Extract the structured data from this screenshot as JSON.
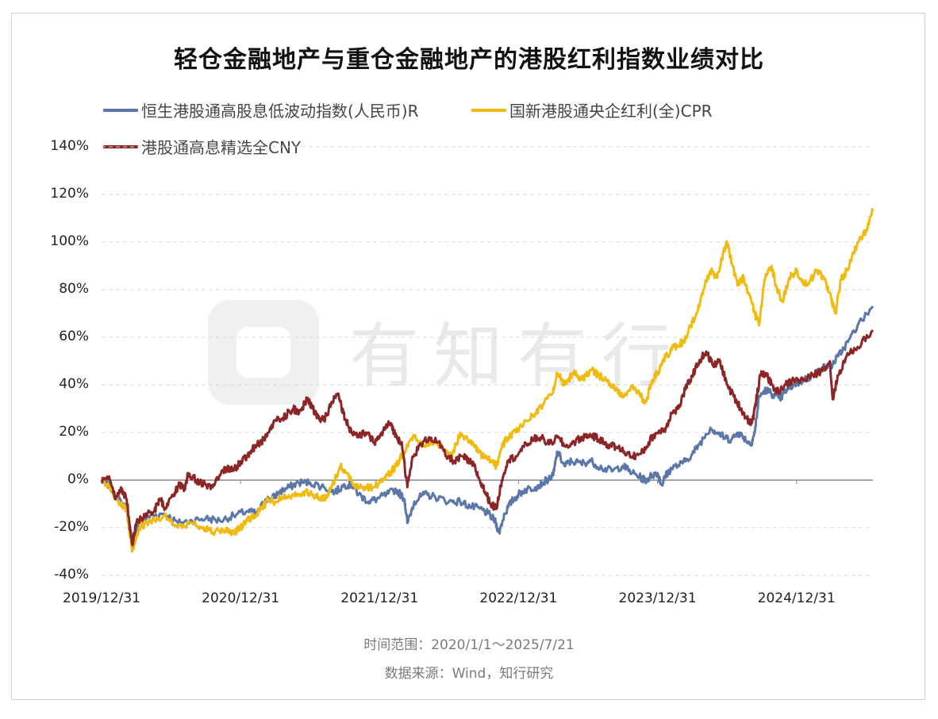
{
  "title": "轻仓金融地产与重仓金融地产的港股红利指数业绩对比",
  "watermark_text": "有知有行",
  "notes": {
    "time_range": "时间范围：2020/1/1～2025/7/21",
    "source": "数据来源：Wind，知行研究"
  },
  "colors": {
    "series1": "#5b76a8",
    "series2": "#f0bb10",
    "series3": "#8b2526",
    "grid": "#d8d8d8",
    "zero_line": "#8a8a8a"
  },
  "chart_data": {
    "type": "line",
    "title": "轻仓金融地产与重仓金融地产的港股红利指数业绩对比",
    "xlabel": "",
    "ylabel": "",
    "ylim": [
      -40,
      140
    ],
    "yticks": [
      "140%",
      "120%",
      "100%",
      "80%",
      "60%",
      "40%",
      "20%",
      "0%",
      "-20%",
      "-40%"
    ],
    "ytick_values": [
      140,
      120,
      100,
      80,
      60,
      40,
      20,
      0,
      -20,
      -40
    ],
    "xticks": [
      "2019/12/31",
      "2020/12/31",
      "2021/12/31",
      "2022/12/31",
      "2023/12/31",
      "2024/12/31"
    ],
    "xtick_values": [
      2020.0,
      2021.0,
      2022.0,
      2023.0,
      2024.0,
      2025.0
    ],
    "xlim": [
      2020.0,
      2025.55
    ],
    "grid": "horizontal dashed",
    "legend_position": "top",
    "series": [
      {
        "name": "恒生港股通高股息低波动指数(人民币)R",
        "color": "#5b76a8",
        "points": [
          [
            2020.0,
            0
          ],
          [
            2020.05,
            -2
          ],
          [
            2020.12,
            -8
          ],
          [
            2020.18,
            -12
          ],
          [
            2020.22,
            -26
          ],
          [
            2020.27,
            -18
          ],
          [
            2020.35,
            -15
          ],
          [
            2020.45,
            -14
          ],
          [
            2020.55,
            -18
          ],
          [
            2020.65,
            -17
          ],
          [
            2020.75,
            -16
          ],
          [
            2020.85,
            -17
          ],
          [
            2020.95,
            -15
          ],
          [
            2021.05,
            -13
          ],
          [
            2021.12,
            -14
          ],
          [
            2021.18,
            -8
          ],
          [
            2021.22,
            -8
          ],
          [
            2021.28,
            -5
          ],
          [
            2021.35,
            -3
          ],
          [
            2021.42,
            -1
          ],
          [
            2021.5,
            -1
          ],
          [
            2021.6,
            -3
          ],
          [
            2021.68,
            -5
          ],
          [
            2021.75,
            -2
          ],
          [
            2021.8,
            -2
          ],
          [
            2021.85,
            -6
          ],
          [
            2021.92,
            -9
          ],
          [
            2021.98,
            -8
          ],
          [
            2022.05,
            -6
          ],
          [
            2022.12,
            -4
          ],
          [
            2022.18,
            -8
          ],
          [
            2022.2,
            -18
          ],
          [
            2022.25,
            -9
          ],
          [
            2022.32,
            -6
          ],
          [
            2022.4,
            -7
          ],
          [
            2022.5,
            -9
          ],
          [
            2022.58,
            -9
          ],
          [
            2022.65,
            -11
          ],
          [
            2022.72,
            -12
          ],
          [
            2022.78,
            -14
          ],
          [
            2022.83,
            -17
          ],
          [
            2022.86,
            -22
          ],
          [
            2022.9,
            -14
          ],
          [
            2022.95,
            -9
          ],
          [
            2023.0,
            -6
          ],
          [
            2023.05,
            -4
          ],
          [
            2023.12,
            -3
          ],
          [
            2023.18,
            -1
          ],
          [
            2023.25,
            2
          ],
          [
            2023.28,
            12
          ],
          [
            2023.33,
            6
          ],
          [
            2023.38,
            8
          ],
          [
            2023.45,
            7
          ],
          [
            2023.52,
            8
          ],
          [
            2023.6,
            5
          ],
          [
            2023.68,
            4
          ],
          [
            2023.75,
            6
          ],
          [
            2023.82,
            3
          ],
          [
            2023.88,
            1
          ],
          [
            2023.92,
            0
          ],
          [
            2023.96,
            2
          ],
          [
            2024.0,
            3
          ],
          [
            2024.03,
            -2
          ],
          [
            2024.06,
            2
          ],
          [
            2024.1,
            5
          ],
          [
            2024.18,
            7
          ],
          [
            2024.25,
            11
          ],
          [
            2024.3,
            15
          ],
          [
            2024.38,
            22
          ],
          [
            2024.43,
            20
          ],
          [
            2024.48,
            18
          ],
          [
            2024.53,
            17
          ],
          [
            2024.58,
            20
          ],
          [
            2024.62,
            18
          ],
          [
            2024.67,
            15
          ],
          [
            2024.7,
            20
          ],
          [
            2024.73,
            35
          ],
          [
            2024.78,
            38
          ],
          [
            2024.83,
            36
          ],
          [
            2024.88,
            34
          ],
          [
            2024.93,
            38
          ],
          [
            2024.98,
            40
          ],
          [
            2025.05,
            42
          ],
          [
            2025.12,
            44
          ],
          [
            2025.18,
            47
          ],
          [
            2025.25,
            48
          ],
          [
            2025.3,
            52
          ],
          [
            2025.37,
            58
          ],
          [
            2025.44,
            65
          ],
          [
            2025.55,
            73
          ]
        ]
      },
      {
        "name": "国新港股通央企红利(全)CPR",
        "color": "#f0bb10",
        "points": [
          [
            2020.0,
            0
          ],
          [
            2020.05,
            -2
          ],
          [
            2020.12,
            -9
          ],
          [
            2020.18,
            -13
          ],
          [
            2020.22,
            -30
          ],
          [
            2020.27,
            -20
          ],
          [
            2020.35,
            -17
          ],
          [
            2020.45,
            -15
          ],
          [
            2020.55,
            -20
          ],
          [
            2020.65,
            -18
          ],
          [
            2020.75,
            -20
          ],
          [
            2020.8,
            -22
          ],
          [
            2020.88,
            -21
          ],
          [
            2020.95,
            -22
          ],
          [
            2021.0,
            -20
          ],
          [
            2021.05,
            -17
          ],
          [
            2021.1,
            -15
          ],
          [
            2021.15,
            -12
          ],
          [
            2021.2,
            -8
          ],
          [
            2021.25,
            -9
          ],
          [
            2021.3,
            -7
          ],
          [
            2021.38,
            -6
          ],
          [
            2021.45,
            -5
          ],
          [
            2021.52,
            -6
          ],
          [
            2021.58,
            -8
          ],
          [
            2021.62,
            -7
          ],
          [
            2021.66,
            -2
          ],
          [
            2021.72,
            6
          ],
          [
            2021.76,
            3
          ],
          [
            2021.82,
            -2
          ],
          [
            2021.88,
            -3
          ],
          [
            2021.95,
            -3
          ],
          [
            2022.0,
            -1
          ],
          [
            2022.06,
            2
          ],
          [
            2022.12,
            6
          ],
          [
            2022.16,
            10
          ],
          [
            2022.2,
            15
          ],
          [
            2022.25,
            18
          ],
          [
            2022.32,
            14
          ],
          [
            2022.4,
            17
          ],
          [
            2022.47,
            12
          ],
          [
            2022.52,
            10
          ],
          [
            2022.58,
            20
          ],
          [
            2022.62,
            18
          ],
          [
            2022.68,
            14
          ],
          [
            2022.74,
            10
          ],
          [
            2022.8,
            8
          ],
          [
            2022.84,
            6
          ],
          [
            2022.88,
            14
          ],
          [
            2022.92,
            18
          ],
          [
            2022.98,
            20
          ],
          [
            2023.05,
            25
          ],
          [
            2023.12,
            28
          ],
          [
            2023.18,
            32
          ],
          [
            2023.24,
            36
          ],
          [
            2023.28,
            45
          ],
          [
            2023.33,
            40
          ],
          [
            2023.4,
            46
          ],
          [
            2023.45,
            42
          ],
          [
            2023.52,
            46
          ],
          [
            2023.58,
            44
          ],
          [
            2023.64,
            42
          ],
          [
            2023.7,
            38
          ],
          [
            2023.76,
            35
          ],
          [
            2023.82,
            40
          ],
          [
            2023.88,
            35
          ],
          [
            2023.92,
            33
          ],
          [
            2023.96,
            42
          ],
          [
            2024.0,
            45
          ],
          [
            2024.06,
            52
          ],
          [
            2024.12,
            56
          ],
          [
            2024.18,
            58
          ],
          [
            2024.22,
            62
          ],
          [
            2024.28,
            70
          ],
          [
            2024.33,
            80
          ],
          [
            2024.38,
            88
          ],
          [
            2024.43,
            85
          ],
          [
            2024.47,
            95
          ],
          [
            2024.5,
            100
          ],
          [
            2024.54,
            90
          ],
          [
            2024.58,
            82
          ],
          [
            2024.62,
            85
          ],
          [
            2024.66,
            78
          ],
          [
            2024.7,
            70
          ],
          [
            2024.73,
            65
          ],
          [
            2024.77,
            84
          ],
          [
            2024.82,
            90
          ],
          [
            2024.86,
            80
          ],
          [
            2024.9,
            75
          ],
          [
            2024.95,
            85
          ],
          [
            2025.0,
            88
          ],
          [
            2025.05,
            82
          ],
          [
            2025.1,
            84
          ],
          [
            2025.15,
            88
          ],
          [
            2025.2,
            85
          ],
          [
            2025.25,
            76
          ],
          [
            2025.28,
            70
          ],
          [
            2025.32,
            84
          ],
          [
            2025.38,
            90
          ],
          [
            2025.44,
            100
          ],
          [
            2025.5,
            105
          ],
          [
            2025.55,
            113
          ]
        ]
      },
      {
        "name": "港股通高息精选全CNY",
        "color": "#8b2526",
        "points": [
          [
            2020.0,
            0
          ],
          [
            2020.05,
            1
          ],
          [
            2020.1,
            -8
          ],
          [
            2020.14,
            -3
          ],
          [
            2020.18,
            -8
          ],
          [
            2020.22,
            -27
          ],
          [
            2020.25,
            -18
          ],
          [
            2020.32,
            -14
          ],
          [
            2020.38,
            -13
          ],
          [
            2020.42,
            -8
          ],
          [
            2020.46,
            -12
          ],
          [
            2020.52,
            -6
          ],
          [
            2020.56,
            -2
          ],
          [
            2020.6,
            -4
          ],
          [
            2020.62,
            3
          ],
          [
            2020.68,
            0
          ],
          [
            2020.75,
            -2
          ],
          [
            2020.8,
            -3
          ],
          [
            2020.86,
            3
          ],
          [
            2020.9,
            5
          ],
          [
            2020.95,
            4
          ],
          [
            2021.0,
            8
          ],
          [
            2021.05,
            10
          ],
          [
            2021.1,
            14
          ],
          [
            2021.15,
            16
          ],
          [
            2021.2,
            20
          ],
          [
            2021.25,
            25
          ],
          [
            2021.3,
            26
          ],
          [
            2021.38,
            30
          ],
          [
            2021.42,
            28
          ],
          [
            2021.48,
            34
          ],
          [
            2021.52,
            30
          ],
          [
            2021.56,
            26
          ],
          [
            2021.6,
            25
          ],
          [
            2021.66,
            33
          ],
          [
            2021.7,
            36
          ],
          [
            2021.74,
            28
          ],
          [
            2021.78,
            22
          ],
          [
            2021.84,
            18
          ],
          [
            2021.9,
            20
          ],
          [
            2021.96,
            16
          ],
          [
            2022.0,
            18
          ],
          [
            2022.04,
            22
          ],
          [
            2022.08,
            24
          ],
          [
            2022.12,
            18
          ],
          [
            2022.16,
            16
          ],
          [
            2022.2,
            -3
          ],
          [
            2022.24,
            10
          ],
          [
            2022.3,
            15
          ],
          [
            2022.36,
            18
          ],
          [
            2022.42,
            16
          ],
          [
            2022.48,
            10
          ],
          [
            2022.54,
            8
          ],
          [
            2022.6,
            10
          ],
          [
            2022.64,
            8
          ],
          [
            2022.68,
            6
          ],
          [
            2022.72,
            0
          ],
          [
            2022.76,
            -5
          ],
          [
            2022.8,
            -10
          ],
          [
            2022.84,
            -12
          ],
          [
            2022.88,
            0
          ],
          [
            2022.92,
            8
          ],
          [
            2022.98,
            10
          ],
          [
            2023.04,
            14
          ],
          [
            2023.1,
            17
          ],
          [
            2023.16,
            18
          ],
          [
            2023.22,
            15
          ],
          [
            2023.28,
            18
          ],
          [
            2023.34,
            14
          ],
          [
            2023.4,
            16
          ],
          [
            2023.46,
            18
          ],
          [
            2023.52,
            19
          ],
          [
            2023.58,
            17
          ],
          [
            2023.64,
            15
          ],
          [
            2023.7,
            14
          ],
          [
            2023.76,
            12
          ],
          [
            2023.82,
            10
          ],
          [
            2023.88,
            11
          ],
          [
            2023.92,
            14
          ],
          [
            2023.96,
            18
          ],
          [
            2024.0,
            20
          ],
          [
            2024.06,
            22
          ],
          [
            2024.1,
            28
          ],
          [
            2024.15,
            30
          ],
          [
            2024.2,
            38
          ],
          [
            2024.25,
            44
          ],
          [
            2024.3,
            50
          ],
          [
            2024.35,
            54
          ],
          [
            2024.4,
            48
          ],
          [
            2024.45,
            50
          ],
          [
            2024.5,
            40
          ],
          [
            2024.55,
            35
          ],
          [
            2024.6,
            30
          ],
          [
            2024.64,
            26
          ],
          [
            2024.68,
            24
          ],
          [
            2024.7,
            30
          ],
          [
            2024.74,
            44
          ],
          [
            2024.78,
            45
          ],
          [
            2024.82,
            40
          ],
          [
            2024.86,
            37
          ],
          [
            2024.92,
            40
          ],
          [
            2024.98,
            42
          ],
          [
            2025.05,
            42
          ],
          [
            2025.12,
            44
          ],
          [
            2025.18,
            46
          ],
          [
            2025.24,
            50
          ],
          [
            2025.26,
            34
          ],
          [
            2025.3,
            44
          ],
          [
            2025.36,
            52
          ],
          [
            2025.44,
            56
          ],
          [
            2025.55,
            63
          ]
        ]
      }
    ]
  }
}
